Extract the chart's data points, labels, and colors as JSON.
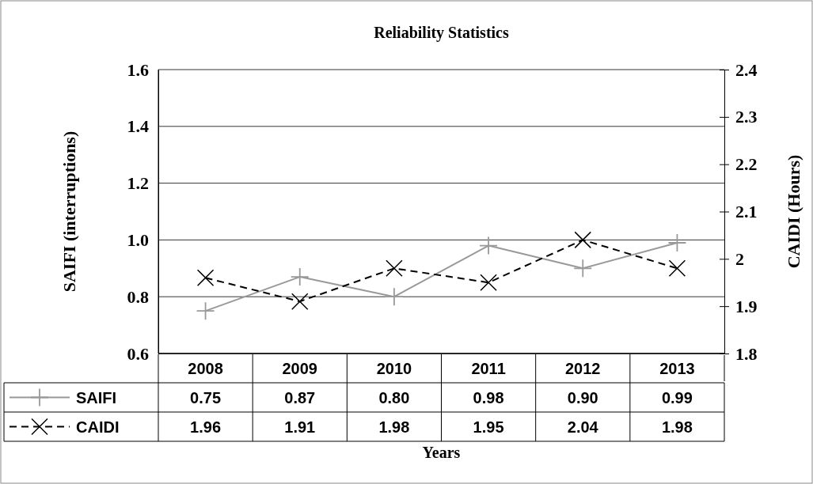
{
  "chart_data": {
    "type": "line",
    "title": "Reliability Statistics",
    "xlabel": "Years",
    "ylabel": "SAIFI (interruptions)",
    "y2label": "CAIDI (Hours)",
    "categories": [
      "2008",
      "2009",
      "2010",
      "2011",
      "2012",
      "2013"
    ],
    "series": [
      {
        "name": "SAIFI",
        "color": "#999999",
        "values": [
          0.75,
          0.87,
          0.8,
          0.98,
          0.9,
          0.99
        ],
        "value_labels": [
          "0.75",
          "0.87",
          "0.80",
          "0.98",
          "0.90",
          "0.99"
        ],
        "marker": "cross",
        "line_style": "solid"
      },
      {
        "name": "CAIDI",
        "color": "#000000",
        "values": [
          1.96,
          1.91,
          1.98,
          1.95,
          2.04,
          1.98
        ],
        "value_labels": [
          "1.96",
          "1.91",
          "1.98",
          "1.95",
          "2.04",
          "1.98"
        ],
        "axis": "y2",
        "marker": "x",
        "line_style": "dashed"
      }
    ],
    "ylim": [
      0.6,
      1.6
    ],
    "yticks": [
      0.6,
      0.8,
      {
        "value": 1,
        "label": "1.0"
      },
      1.2,
      1.4,
      1.6
    ],
    "y2lim": [
      1.8,
      2.4
    ],
    "y2ticks": [
      1.8,
      1.9,
      2,
      2.1,
      2.2,
      2.3,
      2.4
    ],
    "grid": "y",
    "legend": "bottom"
  }
}
